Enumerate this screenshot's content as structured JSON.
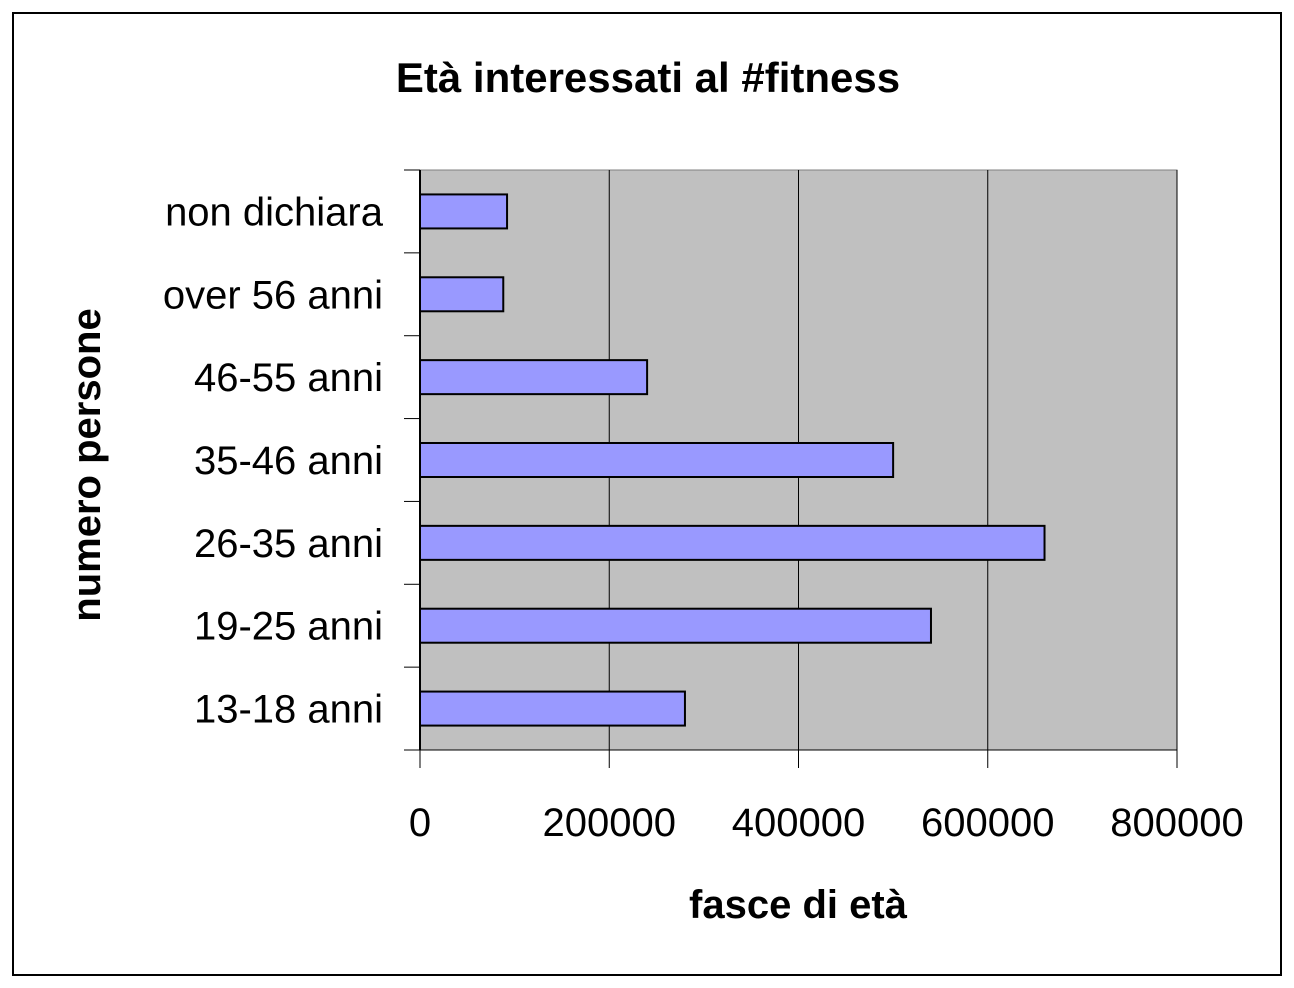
{
  "chart_data": {
    "type": "bar",
    "orientation": "horizontal",
    "title": "Età interessati al #fitness",
    "xlabel": "fasce di età",
    "ylabel": "numero persone",
    "categories": [
      "13-18 anni",
      "19-25 anni",
      "26-35 anni",
      "35-46 anni",
      "46-55 anni",
      "over 56 anni",
      "non dichiara"
    ],
    "values": [
      280000,
      540000,
      660000,
      500000,
      240000,
      88000,
      92000
    ],
    "xlim": [
      0,
      800000
    ],
    "xticks": [
      "0",
      "200000",
      "400000",
      "600000",
      "800000"
    ],
    "grid": "vertical",
    "legend": "none",
    "colors": {
      "bar": "#9999ff",
      "plot_background": "#c0c0c0",
      "gridline": "#000000"
    }
  }
}
